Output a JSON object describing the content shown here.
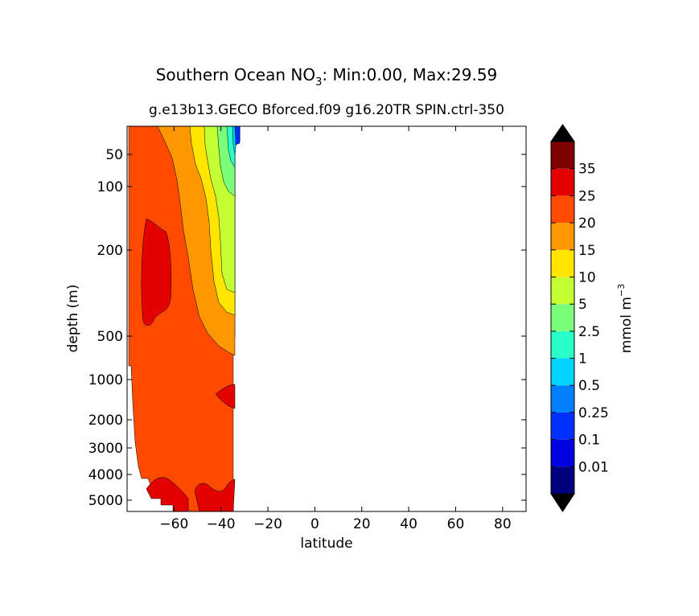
{
  "title": {
    "prefix": "Southern Ocean NO",
    "sub": "3",
    "suffix": ": Min:0.00, Max:29.59"
  },
  "subtitle": "g.e13b13.GECO Bforced.f09 g16.20TR SPIN.ctrl-350",
  "colors": {
    "levels": [
      "#00007f",
      "#0000e0",
      "#0030ff",
      "#0080ff",
      "#00d4ff",
      "#29ffc7",
      "#7bff7b",
      "#c3ff33",
      "#ffe500",
      "#ff9800",
      "#ff4a00",
      "#e30000",
      "#7f0000"
    ],
    "extend": "#000000",
    "line": "#000000"
  },
  "chart_data": {
    "type": "filled-contour",
    "title": "Southern Ocean NO3: Min:0.00, Max:29.59",
    "subtitle": "g.e13b13.GECO Bforced.f09 g16.20TR SPIN.ctrl-350",
    "xlabel": "latitude",
    "ylabel": "depth (m)",
    "xlim": [
      -80,
      90
    ],
    "x_ticks": [
      -60,
      -40,
      -20,
      0,
      20,
      40,
      60,
      80
    ],
    "x_tick_labels": [
      "−60",
      "−40",
      "−20",
      "0",
      "20",
      "40",
      "60",
      "80"
    ],
    "y_scale": "nonlinear-depth",
    "y_range": [
      10,
      5500
    ],
    "y_ticks": [
      50,
      100,
      200,
      500,
      1000,
      2000,
      3000,
      4000,
      5000
    ],
    "y_inverted": true,
    "colorbar": {
      "label": "mmol m",
      "label_sup": "−3",
      "levels": [
        0,
        0.01,
        0.1,
        0.25,
        0.5,
        1,
        2.5,
        5,
        10,
        15,
        20,
        25,
        35,
        40
      ],
      "tick_labels": [
        "0.01",
        "0.1",
        "0.25",
        "0.5",
        "1",
        "2.5",
        "5",
        "10",
        "15",
        "20",
        "25",
        "35"
      ],
      "extend": "both",
      "placement": "right"
    },
    "data_extent_lat": [
      -78,
      -33
    ],
    "min": 0.0,
    "max": 29.59
  }
}
